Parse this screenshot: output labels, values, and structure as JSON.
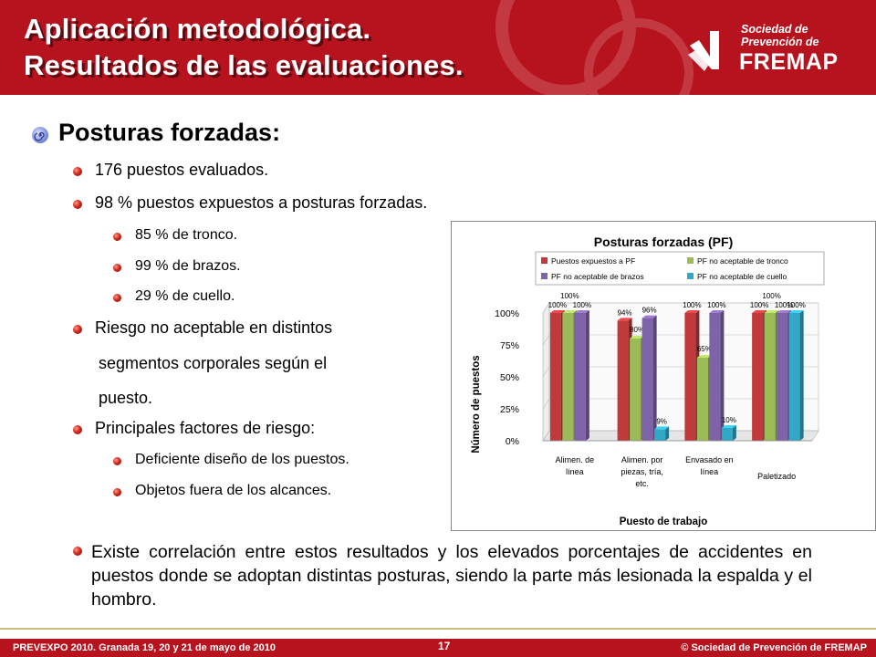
{
  "header": {
    "title_line1": "Aplicación metodológica.",
    "title_line2": "Resultados de las evaluaciones.",
    "logo": {
      "line1": "Sociedad de",
      "line2": "Prevención de",
      "brand": "FREMAP"
    }
  },
  "content": {
    "heading": "Posturas forzadas:",
    "items": [
      "176 puestos evaluados.",
      "98 % puestos expuestos a posturas forzadas."
    ],
    "subitems": [
      "85 % de tronco.",
      "99 % de brazos.",
      "29 % de cuello."
    ],
    "risk_lines": [
      "Riesgo no aceptable en distintos",
      "segmentos corporales según el",
      "puesto."
    ],
    "factors_heading": "Principales factores de riesgo:",
    "factors": [
      "Deficiente diseño de los puestos.",
      "Objetos fuera de los alcances."
    ],
    "paragraph": "Existe correlación entre estos resultados y los elevados porcentajes de accidentes en puestos donde se adoptan distintas posturas, siendo la parte más lesionada la espalda  y el hombro."
  },
  "footer": {
    "event": "PREVEXPO 2010. Granada 19, 20 y 21 de mayo de 2010",
    "page": "17",
    "copyright": "© Sociedad de Prevención de FREMAP"
  },
  "colors": {
    "brand_red": "#b7131e",
    "footer_line": "#c9bd78"
  },
  "chart_data": {
    "type": "bar",
    "title": "Posturas forzadas (PF)",
    "xlabel": "Puesto de trabajo",
    "ylabel": "Número de puestos",
    "ylim": [
      0,
      100
    ],
    "y_ticks": [
      "0%",
      "25%",
      "50%",
      "75%",
      "100%"
    ],
    "categories": [
      [
        "Alimen. de",
        "línea"
      ],
      [
        "Alimen. por",
        "piezas, tría,",
        "etc."
      ],
      [
        "Envasado en",
        "línea"
      ],
      [
        "Paletizado"
      ]
    ],
    "series": [
      {
        "name": "Puestos expuestos a PF",
        "color": "#c0393b",
        "values": [
          100,
          94,
          100,
          100
        ],
        "labels": [
          "100%",
          "94%",
          "100%",
          "100%"
        ]
      },
      {
        "name": "PF no aceptable de tronco",
        "color": "#9bbb59",
        "values": [
          100,
          80,
          65,
          100
        ],
        "labels": [
          "100%",
          "80%",
          "65%",
          "100%"
        ]
      },
      {
        "name": "PF no aceptable de brazos",
        "color": "#7f63a8",
        "values": [
          100,
          96,
          100,
          100
        ],
        "labels": [
          "100%",
          "96%",
          "100%",
          "100%"
        ]
      },
      {
        "name": "PF no aceptable de cuello",
        "color": "#31a8c6",
        "values": [
          null,
          9,
          10,
          100
        ],
        "labels": [
          "",
          "9%",
          "10%",
          "100%"
        ]
      }
    ],
    "legend_entries": [
      "Puestos expuestos a PF",
      "PF no aceptable de tronco",
      "PF no aceptable de brazos",
      "PF no aceptable de cuello"
    ],
    "legend_position": "top",
    "grid": true
  }
}
